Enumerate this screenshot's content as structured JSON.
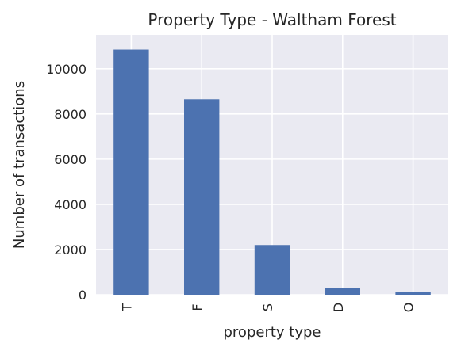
{
  "chart_data": {
    "type": "bar",
    "title": "Property Type - Waltham Forest",
    "xlabel": "property type",
    "ylabel": "Number of transactions",
    "categories": [
      "T",
      "F",
      "S",
      "D",
      "O"
    ],
    "values": [
      10850,
      8650,
      2200,
      300,
      120
    ],
    "ylim": [
      0,
      11500
    ],
    "yticks": [
      0,
      2000,
      4000,
      6000,
      8000,
      10000
    ],
    "grid": true,
    "colors": {
      "bar": "#4c72b0",
      "plot_background": "#eaeaf2",
      "grid": "#ffffff",
      "text": "#262626"
    }
  }
}
